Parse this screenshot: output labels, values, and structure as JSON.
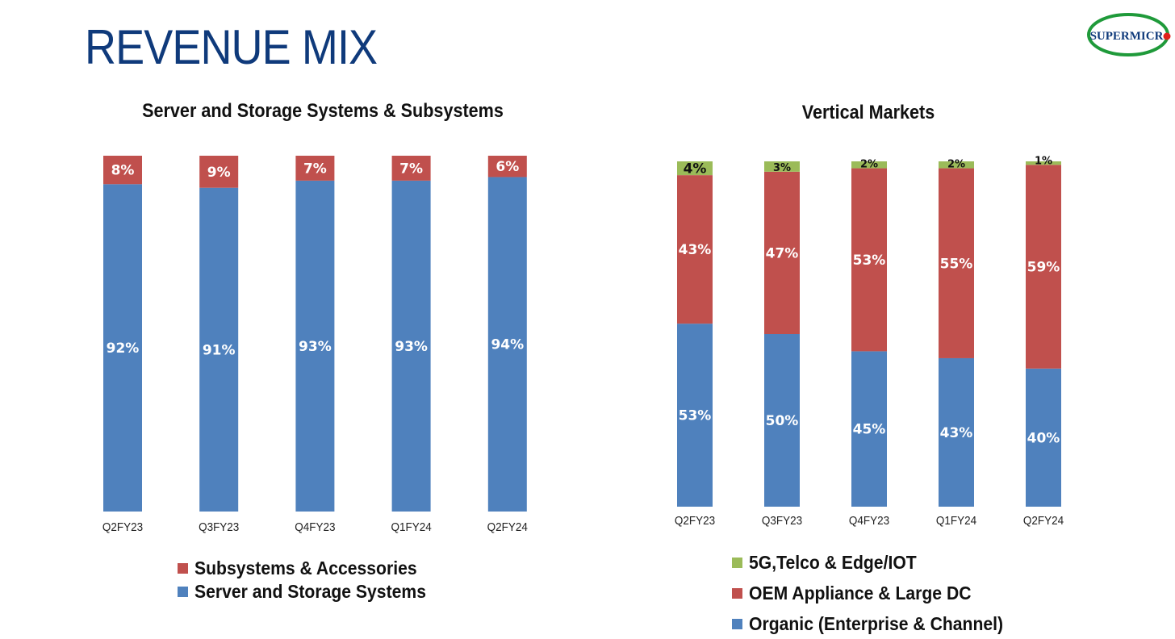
{
  "page": {
    "title": "REVENUE MIX",
    "logo_text": "SUPERMICR"
  },
  "colors": {
    "blue": "#4f81bd",
    "red": "#c0504d",
    "green": "#9bbb59",
    "title_blue": "#0f3a7b",
    "logo_green": "#1f9a3a",
    "logo_red": "#e0201b"
  },
  "chart_data": [
    {
      "id": "server-storage",
      "type": "bar",
      "stacked": true,
      "title": "Server and Storage Systems & Subsystems",
      "categories": [
        "Q2FY23",
        "Q3FY23",
        "Q4FY23",
        "Q1FY24",
        "Q2FY24"
      ],
      "series": [
        {
          "name": "Server and Storage Systems",
          "color": "#4f81bd",
          "values": [
            92,
            91,
            93,
            93,
            94
          ],
          "labels": [
            "92%",
            "91%",
            "93%",
            "93%",
            "94%"
          ]
        },
        {
          "name": "Subsystems & Accessories",
          "color": "#c0504d",
          "values": [
            8,
            9,
            7,
            7,
            6
          ],
          "labels": [
            "8%",
            "9%",
            "7%",
            "7%",
            "6%"
          ]
        }
      ],
      "legend": [
        {
          "name": "Subsystems & Accessories",
          "color": "#c0504d"
        },
        {
          "name": "Server and Storage Systems",
          "color": "#4f81bd"
        }
      ],
      "ylim": [
        0,
        100
      ],
      "grid": false,
      "legend_position": "bottom"
    },
    {
      "id": "vertical-markets",
      "type": "bar",
      "stacked": true,
      "title": "Vertical Markets",
      "categories": [
        "Q2FY23",
        "Q3FY23",
        "Q4FY23",
        "Q1FY24",
        "Q2FY24"
      ],
      "series": [
        {
          "name": "Organic (Enterprise & Channel)",
          "color": "#4f81bd",
          "values": [
            53,
            50,
            45,
            43,
            40
          ],
          "labels": [
            "53%",
            "50%",
            "45%",
            "43%",
            "40%"
          ]
        },
        {
          "name": "OEM Appliance & Large DC",
          "color": "#c0504d",
          "values": [
            43,
            47,
            53,
            55,
            59
          ],
          "labels": [
            "43%",
            "47%",
            "53%",
            "55%",
            "59%"
          ]
        },
        {
          "name": "5G,Telco & Edge/IOT",
          "color": "#9bbb59",
          "values": [
            4,
            3,
            2,
            2,
            1
          ],
          "labels": [
            "4%",
            "3%",
            "2%",
            "2%",
            "1%"
          ]
        }
      ],
      "legend": [
        {
          "name": "5G,Telco & Edge/IOT",
          "color": "#9bbb59"
        },
        {
          "name": "OEM Appliance & Large DC",
          "color": "#c0504d"
        },
        {
          "name": "Organic (Enterprise & Channel)",
          "color": "#4f81bd"
        }
      ],
      "ylim": [
        0,
        100
      ],
      "grid": false,
      "legend_position": "bottom"
    }
  ]
}
